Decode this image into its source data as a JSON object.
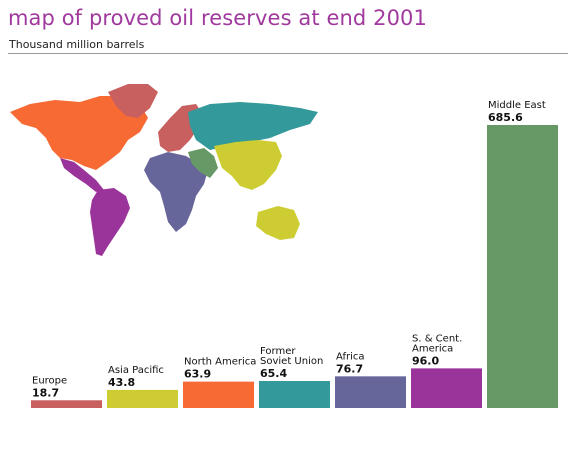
{
  "title": "map of proved oil reserves at end 2001",
  "subtitle": "Thousand million barrels",
  "chart_data": {
    "type": "bar",
    "title": "map of proved oil reserves at end 2001",
    "ylabel": "Thousand million barrels",
    "ylim": [
      0,
      685.6
    ],
    "grid": false,
    "categories": [
      "Europe",
      "Asia Pacific",
      "North America",
      "Former Soviet Union",
      "Africa",
      "S. & Cent. America",
      "Middle East"
    ],
    "labels": [
      [
        "Europe"
      ],
      [
        "Asia Pacific"
      ],
      [
        "North America"
      ],
      [
        "Former",
        "Soviet Union"
      ],
      [
        "Africa"
      ],
      [
        "S. & Cent.",
        "America"
      ],
      [
        "Middle East"
      ]
    ],
    "values": [
      18.7,
      43.8,
      63.9,
      65.4,
      76.7,
      96.0,
      685.6
    ],
    "value_labels": [
      "18.7",
      "43.8",
      "63.9",
      "65.4",
      "76.7",
      "96.0",
      "685.6"
    ],
    "colors": [
      "#c8605f",
      "#cdcd33",
      "#f76a33",
      "#33999a",
      "#66669a",
      "#9a339a",
      "#669966"
    ]
  }
}
